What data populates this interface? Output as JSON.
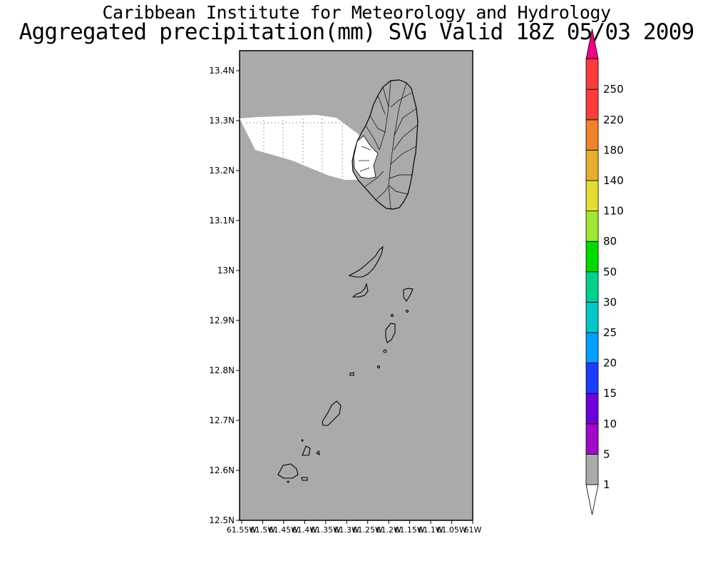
{
  "title": "Caribbean Institute for Meteorology and Hydrology",
  "subtitle": "Aggregated precipitation(mm) SVG Valid 18Z 05/03 2009",
  "map": {
    "background_color": "#aaaaaa",
    "no_rain_color": "#ffffff",
    "coastline_color": "#000000",
    "lat_range": [
      12.5,
      13.44
    ],
    "lon_range": [
      -61.555,
      -61.0
    ],
    "lat_ticks": [
      {
        "value": 13.4,
        "label": "13.4N"
      },
      {
        "value": 13.3,
        "label": "13.3N"
      },
      {
        "value": 13.2,
        "label": "13.2N"
      },
      {
        "value": 13.1,
        "label": "13.1N"
      },
      {
        "value": 13.0,
        "label": "13N"
      },
      {
        "value": 12.9,
        "label": "12.9N"
      },
      {
        "value": 12.8,
        "label": "12.8N"
      },
      {
        "value": 12.7,
        "label": "12.7N"
      },
      {
        "value": 12.6,
        "label": "12.6N"
      },
      {
        "value": 12.5,
        "label": "12.5N"
      }
    ],
    "lon_ticks": [
      {
        "value": -61.55,
        "label": "61.55W"
      },
      {
        "value": -61.5,
        "label": "61.5W"
      },
      {
        "value": -61.45,
        "label": "61.45W"
      },
      {
        "value": -61.4,
        "label": "61.4W"
      },
      {
        "value": -61.35,
        "label": "61.35W"
      },
      {
        "value": -61.3,
        "label": "61.3W"
      },
      {
        "value": -61.25,
        "label": "61.25W"
      },
      {
        "value": -61.2,
        "label": "61.2W"
      },
      {
        "value": -61.15,
        "label": "61.15W"
      },
      {
        "value": -61.1,
        "label": "61.1W"
      },
      {
        "value": -61.05,
        "label": "61.05W"
      },
      {
        "value": -61.0,
        "label": "61W"
      }
    ]
  },
  "legend": {
    "levels": [
      {
        "label": "1",
        "color": "#ffffff"
      },
      {
        "label": "5",
        "color": "#aaaaaa"
      },
      {
        "label": "10",
        "color": "#a10ac8"
      },
      {
        "label": "15",
        "color": "#6e00dc"
      },
      {
        "label": "20",
        "color": "#1e3cff"
      },
      {
        "label": "25",
        "color": "#00a0ff"
      },
      {
        "label": "30",
        "color": "#00c8c8"
      },
      {
        "label": "50",
        "color": "#00d28c"
      },
      {
        "label": "80",
        "color": "#00dc00"
      },
      {
        "label": "110",
        "color": "#a0e632"
      },
      {
        "label": "140",
        "color": "#e6dc32"
      },
      {
        "label": "180",
        "color": "#e6af2d"
      },
      {
        "label": "220",
        "color": "#f08228"
      },
      {
        "label": "250",
        "color": "#fa3c3c"
      }
    ],
    "top_arrow_color": "#f00082",
    "bottom_arrow_color": "#ffffff"
  }
}
